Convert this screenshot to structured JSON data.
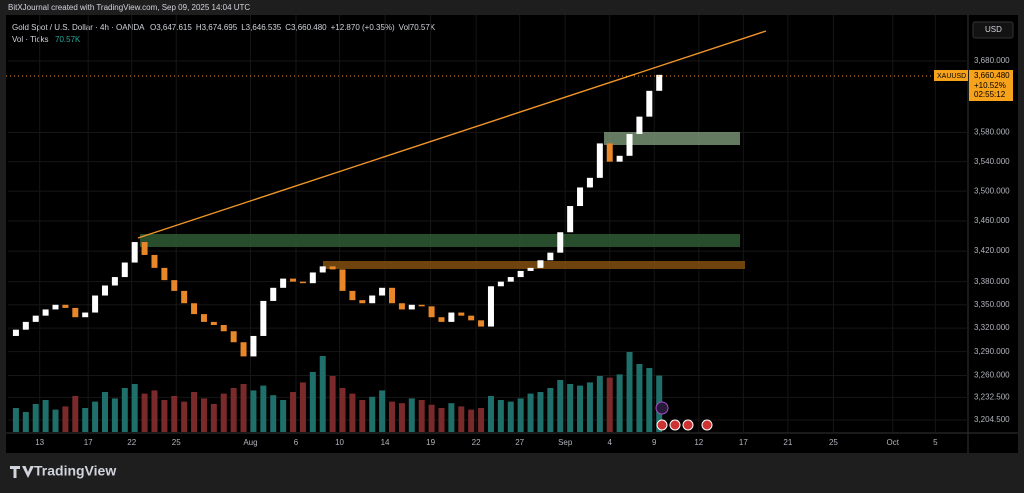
{
  "ui": {
    "credit": "BitXJournal created with TradingView.com, Sep 09, 2025 14:04 UTC",
    "currency": "USD",
    "symbol_tag": "XAUUSD",
    "last_price": "3,660.480",
    "change": "+10.52%",
    "countdown": "02:55:12",
    "logo": "TradingView",
    "ohlc": [
      {
        "label": "O",
        "value": "3,647.615"
      },
      {
        "label": "H",
        "value": "3,674.695"
      },
      {
        "label": "L",
        "value": "3,646.535"
      },
      {
        "label": "C",
        "value": "3,660.480"
      },
      {
        "label": "",
        "value": "+12.870 (+0.35%)"
      },
      {
        "label": "Vol",
        "value": "70.57K"
      }
    ],
    "volume_legend": {
      "label": "Vol · Ticks",
      "value": "70.57K"
    }
  },
  "chart_data": {
    "type": "candlestick",
    "title": "Gold Spot / U.S. Dollar · 4h · OANDA",
    "log_scale": true,
    "grid": true,
    "up_color": "#ffffff",
    "down_color": "#e8862a",
    "volume_up_color": "#1f6f6a",
    "volume_down_color": "#7a2a2a",
    "first_open": 3310,
    "close": [
      3318,
      3328,
      3336,
      3344,
      3350,
      3346,
      3334,
      3340,
      3362,
      3375,
      3386,
      3405,
      3432,
      3415,
      3398,
      3382,
      3368,
      3352,
      3338,
      3328,
      3324,
      3316,
      3302,
      3284,
      3310,
      3355,
      3372,
      3384,
      3380,
      3378,
      3392,
      3400,
      3396,
      3368,
      3356,
      3352,
      3362,
      3372,
      3352,
      3344,
      3350,
      3348,
      3334,
      3328,
      3340,
      3336,
      3330,
      3322,
      3374,
      3380,
      3386,
      3394,
      3398,
      3408,
      3418,
      3445,
      3480,
      3505,
      3518,
      3565,
      3540,
      3548,
      3578,
      3602,
      3638,
      3660.48
    ],
    "volume": [
      30,
      25,
      35,
      40,
      28,
      32,
      45,
      30,
      38,
      50,
      42,
      55,
      60,
      48,
      52,
      40,
      45,
      38,
      50,
      42,
      35,
      48,
      55,
      60,
      52,
      58,
      46,
      40,
      50,
      62,
      75,
      95,
      70,
      55,
      48,
      40,
      44,
      52,
      38,
      36,
      42,
      40,
      34,
      30,
      36,
      32,
      28,
      30,
      45,
      40,
      38,
      42,
      48,
      50,
      55,
      65,
      60,
      58,
      62,
      70,
      68,
      72,
      100,
      85,
      80,
      70.57
    ],
    "xlim": [
      -0.8,
      96.2
    ],
    "xticks": [
      {
        "value": 2.4,
        "label": "13"
      },
      {
        "value": 7.3,
        "label": "17"
      },
      {
        "value": 11.7,
        "label": "22"
      },
      {
        "value": 16.2,
        "label": "25"
      },
      {
        "value": 23.7,
        "label": "Aug"
      },
      {
        "value": 28.3,
        "label": "6"
      },
      {
        "value": 32.7,
        "label": "10"
      },
      {
        "value": 37.3,
        "label": "14"
      },
      {
        "value": 41.9,
        "label": "19"
      },
      {
        "value": 46.5,
        "label": "22"
      },
      {
        "value": 50.9,
        "label": "27"
      },
      {
        "value": 55.5,
        "label": "Sep"
      },
      {
        "value": 60.0,
        "label": "4"
      },
      {
        "value": 64.5,
        "label": "9"
      },
      {
        "value": 69.0,
        "label": "12"
      },
      {
        "value": 73.5,
        "label": "17"
      },
      {
        "value": 78.0,
        "label": "21"
      },
      {
        "value": 82.6,
        "label": "25"
      },
      {
        "value": 88.6,
        "label": "Oct"
      },
      {
        "value": 92.9,
        "label": "5"
      }
    ],
    "ylim": [
      3189.7,
      3745.9
    ],
    "yticks": [
      {
        "value": 3680,
        "label": "3,680.000"
      },
      {
        "value": 3580,
        "label": "3,580.000"
      },
      {
        "value": 3540,
        "label": "3,540.000"
      },
      {
        "value": 3500,
        "label": "3,500.000"
      },
      {
        "value": 3460,
        "label": "3,460.000"
      },
      {
        "value": 3420,
        "label": "3,420.000"
      },
      {
        "value": 3380,
        "label": "3,380.000"
      },
      {
        "value": 3350,
        "label": "3,350.000"
      },
      {
        "value": 3320,
        "label": "3,320.000"
      },
      {
        "value": 3290,
        "label": "3,290.000"
      },
      {
        "value": 3260,
        "label": "3,260.000"
      },
      {
        "value": 3232.5,
        "label": "3,232.500"
      },
      {
        "value": 3204.5,
        "label": "3,204.500"
      }
    ]
  }
}
